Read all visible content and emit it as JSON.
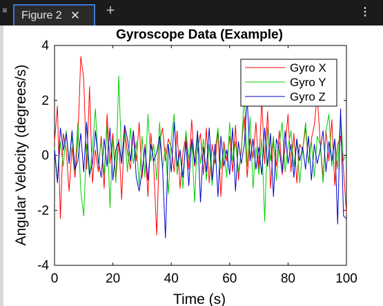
{
  "tabbar": {
    "tab_label": "Figure 2",
    "close_glyph": "✕",
    "add_glyph": "+",
    "more_glyph": "⋮",
    "menu_glyph": "≡",
    "accent_color": "#3a7bd5"
  },
  "chart_data": {
    "type": "line",
    "title": "Gyroscope Data (Example)",
    "xlabel": "Time (s)",
    "ylabel": "Angular Velocity (degrees/s)",
    "xlim": [
      0,
      100
    ],
    "ylim": [
      -4,
      4
    ],
    "xticks": [
      0,
      20,
      40,
      60,
      80,
      100
    ],
    "yticks": [
      -4,
      -2,
      0,
      2,
      4
    ],
    "grid": false,
    "legend_position": "top-right",
    "x": [
      0,
      1,
      2,
      3,
      4,
      5,
      6,
      7,
      8,
      9,
      10,
      11,
      12,
      13,
      14,
      15,
      16,
      17,
      18,
      19,
      20,
      21,
      22,
      23,
      24,
      25,
      26,
      27,
      28,
      29,
      30,
      31,
      32,
      33,
      34,
      35,
      36,
      37,
      38,
      39,
      40,
      41,
      42,
      43,
      44,
      45,
      46,
      47,
      48,
      49,
      50,
      51,
      52,
      53,
      54,
      55,
      56,
      57,
      58,
      59,
      60,
      61,
      62,
      63,
      64,
      65,
      66,
      67,
      68,
      69,
      70,
      71,
      72,
      73,
      74,
      75,
      76,
      77,
      78,
      79,
      80,
      81,
      82,
      83,
      84,
      85,
      86,
      87,
      88,
      89,
      90,
      91,
      92,
      93,
      94,
      95,
      96,
      97,
      98,
      99,
      100
    ],
    "series": [
      {
        "name": "Gyro X",
        "color": "#ff0000",
        "values": [
          0.5,
          1.8,
          -2.3,
          0.8,
          0.2,
          -1.3,
          0.3,
          -0.8,
          0.6,
          3.6,
          2.8,
          -0.5,
          2.5,
          -1.0,
          0.2,
          -0.6,
          0.7,
          -1.2,
          1.5,
          -0.3,
          0.8,
          -0.9,
          0.6,
          -1.6,
          1.0,
          0.1,
          -0.5,
          0.9,
          -0.2,
          1.2,
          -0.8,
          0.4,
          -1.5,
          0.8,
          -0.4,
          -2.9,
          0.5,
          1.0,
          -0.2,
          0.6,
          0.3,
          -0.6,
          0.9,
          -1.2,
          0.1,
          0.7,
          -0.5,
          1.3,
          -0.4,
          0.2,
          0.8,
          -0.7,
          1.0,
          -1.0,
          0.4,
          -0.3,
          0.9,
          -1.5,
          0.5,
          -0.2,
          0.7,
          -0.6,
          1.1,
          -0.9,
          0.3,
          1.4,
          -0.8,
          0.6,
          -0.1,
          1.2,
          -0.5,
          2.0,
          -0.3,
          1.6,
          -1.2,
          0.5,
          -0.4,
          0.9,
          -0.7,
          0.3,
          1.5,
          -0.6,
          0.8,
          -1.0,
          0.4,
          0.2,
          1.0,
          -0.3,
          0.6,
          1.1,
          2.2,
          0.5,
          -0.8,
          0.9,
          -0.2,
          1.3,
          -1.1,
          0.4,
          0.7,
          -0.5,
          -2.1
        ]
      },
      {
        "name": "Gyro Y",
        "color": "#00cc00",
        "values": [
          0.3,
          -0.9,
          0.5,
          -0.4,
          0.9,
          -0.2,
          0.7,
          -0.6,
          1.2,
          -1.3,
          -2.2,
          0.4,
          -0.8,
          0.3,
          1.7,
          -0.3,
          0.5,
          -0.7,
          1.1,
          -1.9,
          0.6,
          -1.0,
          2.9,
          -0.2,
          0.8,
          -0.6,
          1.0,
          -0.3,
          0.5,
          -1.1,
          0.7,
          -0.8,
          1.5,
          -0.2,
          0.4,
          -0.9,
          1.2,
          -0.5,
          0.3,
          -1.4,
          0.6,
          1.5,
          -0.7,
          0.2,
          -1.2,
          0.9,
          -0.1,
          0.5,
          -1.7,
          0.8,
          -0.3,
          0.6,
          -0.9,
          0.4,
          -1.1,
          0.2,
          1.0,
          -0.5,
          0.3,
          -0.8,
          1.2,
          -0.2,
          0.5,
          -0.6,
          0.1,
          2.3,
          -0.4,
          1.4,
          -1.2,
          0.3,
          -0.7,
          0.6,
          -2.4,
          1.0,
          -0.2,
          0.7,
          -0.9,
          0.4,
          1.2,
          -0.6,
          0.3,
          0.9,
          -0.4,
          0.6,
          -1.0,
          0.2,
          1.2,
          -0.3,
          0.5,
          -0.8,
          0.7,
          0.4,
          -1.0,
          0.9,
          1.5,
          -0.4,
          0.6,
          -0.5,
          1.5,
          -0.2,
          0.1
        ]
      },
      {
        "name": "Gyro Z",
        "color": "#0000cc",
        "values": [
          0.2,
          -1.0,
          1.0,
          0.2,
          0.8,
          -0.3,
          0.9,
          -0.5,
          -0.2,
          0.8,
          -0.6,
          1.2,
          -0.7,
          -0.3,
          0.9,
          -0.2,
          -0.8,
          0.6,
          -0.4,
          1.0,
          -0.9,
          0.2,
          0.5,
          -0.3,
          1.1,
          0.6,
          -0.2,
          0.9,
          -0.8,
          -1.3,
          -0.6,
          0.3,
          -0.9,
          0.4,
          -0.2,
          0.1,
          0.7,
          -0.4,
          -3.0,
          0.4,
          -0.6,
          1.2,
          -0.4,
          0.2,
          -0.8,
          0.5,
          -1.1,
          0.6,
          -0.3,
          0.9,
          -1.7,
          0.3,
          -0.6,
          1.0,
          -0.9,
          0.4,
          -1.5,
          0.7,
          -0.4,
          0.2,
          -0.7,
          1.0,
          -1.3,
          0.5,
          -0.3,
          0.4,
          2.1,
          -0.2,
          0.6,
          -0.5,
          0.3,
          -0.7,
          1.0,
          -0.4,
          0.8,
          -1.5,
          0.6,
          0.2,
          -0.6,
          0.9,
          -0.3,
          0.4,
          -0.8,
          0.6,
          -0.2,
          0.3,
          -0.5,
          0.7,
          -0.9,
          0.4,
          -0.3,
          0.2,
          0.9,
          -0.6,
          0.5,
          -0.2,
          0.6,
          -2.5,
          1.7,
          -2.2,
          -2.3
        ]
      }
    ]
  }
}
